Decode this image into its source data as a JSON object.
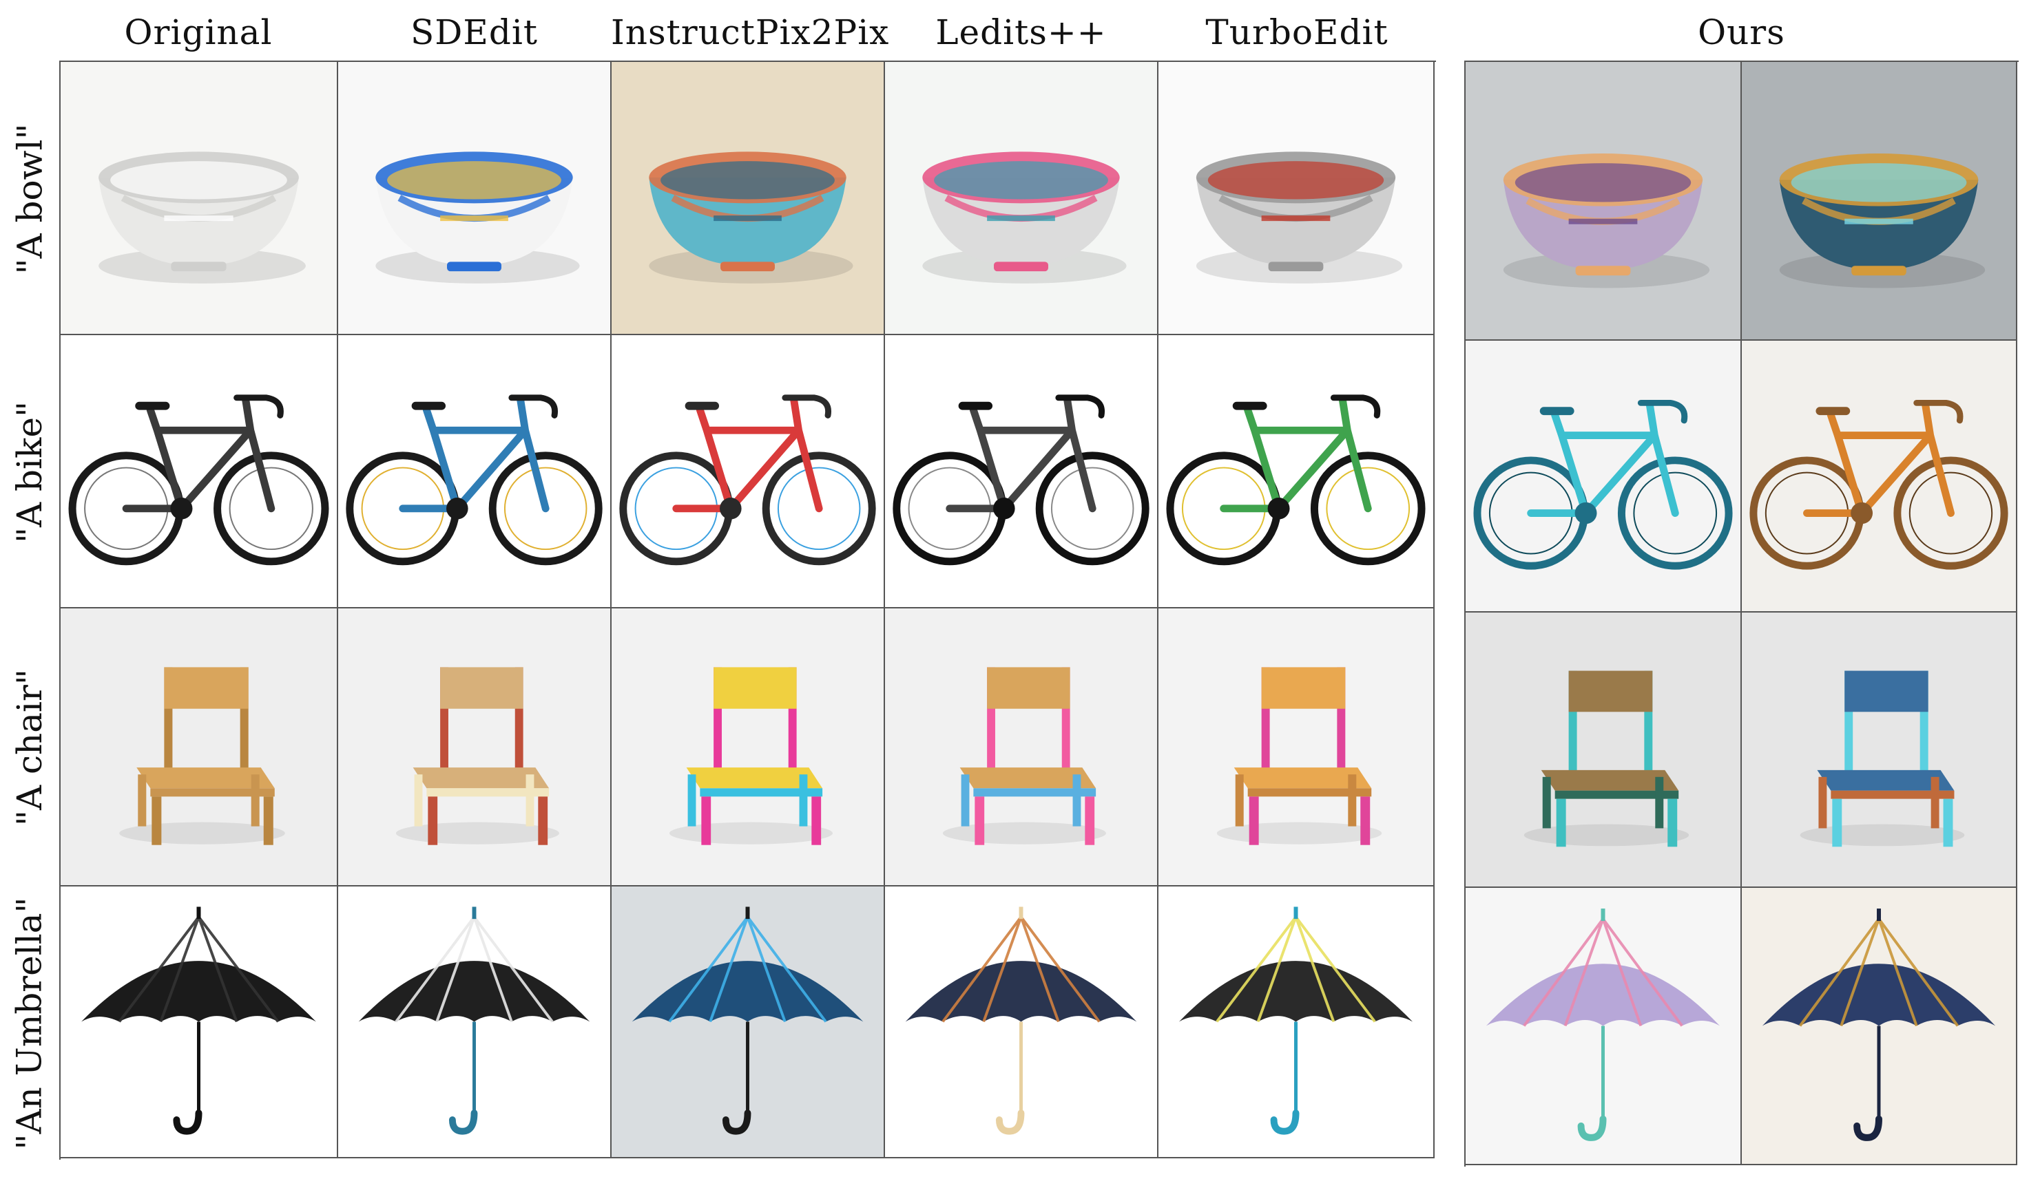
{
  "figure": {
    "columns": [
      "Original",
      "SDEdit",
      "InstructPix2Pix",
      "Ledits++",
      "TurboEdit"
    ],
    "ours_label": "Ours",
    "rows": [
      {
        "label": "\"A bowl\"",
        "subject": "bowl"
      },
      {
        "label": "\"A bike\"",
        "subject": "bike"
      },
      {
        "label": "\"A chair\"",
        "subject": "chair"
      },
      {
        "label": "\"An Umbrella\"",
        "subject": "umbrella"
      }
    ],
    "styles": {
      "bowl": [
        {
          "bg": "#f6f6f4",
          "main": "#e9e9e7",
          "accent": "#cfcfcd",
          "detail": "#ffffff"
        },
        {
          "bg": "#f8f8f8",
          "main": "#f4f4f4",
          "accent": "#2a6fd6",
          "detail": "#f0c040"
        },
        {
          "bg": "#e8dcc4",
          "main": "#5fb7c9",
          "accent": "#d9734a",
          "detail": "#2c6c8a"
        },
        {
          "bg": "#f4f6f4",
          "main": "#dcdcdc",
          "accent": "#e85a8a",
          "detail": "#3aa0b0"
        },
        {
          "bg": "#fafafa",
          "main": "#cfcfcf",
          "accent": "#9a9a9a",
          "detail": "#c0392b"
        },
        {
          "bg": "#c9ccce",
          "main": "#b9a6c8",
          "accent": "#e7a86b",
          "detail": "#6d4c8e"
        },
        {
          "bg": "#aeb3b6",
          "main": "#2f5b72",
          "accent": "#d49a3a",
          "detail": "#79d7e6"
        }
      ],
      "bike": [
        {
          "bg": "#ffffff",
          "main": "#1a1a1a",
          "accent": "#3a3a3a",
          "detail": "#777777"
        },
        {
          "bg": "#ffffff",
          "main": "#1a1a1a",
          "accent": "#2f7db5",
          "detail": "#e0b030"
        },
        {
          "bg": "#ffffff",
          "main": "#2a2a2a",
          "accent": "#d93a3a",
          "detail": "#3aa0e0"
        },
        {
          "bg": "#ffffff",
          "main": "#111111",
          "accent": "#444444",
          "detail": "#888888"
        },
        {
          "bg": "#ffffff",
          "main": "#151515",
          "accent": "#3fa34d",
          "detail": "#e0c030"
        },
        {
          "bg": "#f4f4f4",
          "main": "#1f6f86",
          "accent": "#3cc0d0",
          "detail": "#0d4a5a"
        },
        {
          "bg": "#f2f0ec",
          "main": "#8a5a2b",
          "accent": "#d9822b",
          "detail": "#5a3a1a"
        }
      ],
      "chair": [
        {
          "bg": "#eeeeee",
          "main": "#d9a55c",
          "accent": "#b98640",
          "detail": "#c99550"
        },
        {
          "bg": "#f1f1f1",
          "main": "#d7b07a",
          "accent": "#c0503a",
          "detail": "#f2e6c0"
        },
        {
          "bg": "#f2f2f2",
          "main": "#f0d040",
          "accent": "#e83a9a",
          "detail": "#3ac0e0"
        },
        {
          "bg": "#f1f1f1",
          "main": "#d9a55c",
          "accent": "#f25aa0",
          "detail": "#5ab0e0"
        },
        {
          "bg": "#f3f3f3",
          "main": "#e9a850",
          "accent": "#e0459a",
          "detail": "#c98840"
        },
        {
          "bg": "#e4e4e4",
          "main": "#9a7a4a",
          "accent": "#3fbfc0",
          "detail": "#2f6b5a"
        },
        {
          "bg": "#e6e6e6",
          "main": "#3a6fa0",
          "accent": "#5bd0e0",
          "detail": "#c06a3a"
        }
      ],
      "umbrella": [
        {
          "bg": "#ffffff",
          "main": "#1b1b1b",
          "accent": "#333333",
          "detail": "#111111"
        },
        {
          "bg": "#ffffff",
          "main": "#202020",
          "accent": "#e8e8e8",
          "detail": "#2a7a9a"
        },
        {
          "bg": "#d9dde0",
          "main": "#1f4f7a",
          "accent": "#3fb0e8",
          "detail": "#1a1a1a"
        },
        {
          "bg": "#ffffff",
          "main": "#2a3550",
          "accent": "#d08040",
          "detail": "#e8d0a0"
        },
        {
          "bg": "#ffffff",
          "main": "#2a2a2a",
          "accent": "#e8e060",
          "detail": "#2aa0c0"
        },
        {
          "bg": "#f6f6f6",
          "main": "#b7a7d8",
          "accent": "#e88ab0",
          "detail": "#5ac0b0"
        },
        {
          "bg": "#f3efe8",
          "main": "#2c3e6a",
          "accent": "#c9973a",
          "detail": "#1a2440"
        }
      ]
    }
  }
}
